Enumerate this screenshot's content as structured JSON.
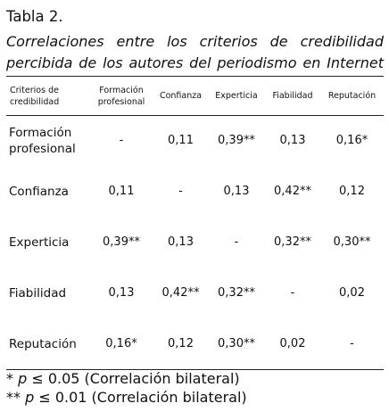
{
  "table_label": "Tabla 2.",
  "caption": {
    "line1": "Correlaciones entre los criterios de credibilidad",
    "line2": "percibida de los autores del periodismo en Internet"
  },
  "table": {
    "header": {
      "criterios_line1": "Criterios de",
      "criterios_line2": "credibilidad",
      "formacion_line1": "Formación",
      "formacion_line2": "profesional",
      "confianza": "Confianza",
      "experticia": "Experticia",
      "fiabilidad": "Fiabilidad",
      "reputacion": "Reputación"
    },
    "rows": [
      {
        "label_line1": "Formación",
        "label_line2": "profesional",
        "cells": [
          "-",
          "0,11",
          "0,39**",
          "0,13",
          "0,16*"
        ]
      },
      {
        "label_line1": "Confianza",
        "label_line2": "",
        "cells": [
          "0,11",
          "-",
          "0,13",
          "0,42**",
          "0,12"
        ]
      },
      {
        "label_line1": "Experticia",
        "label_line2": "",
        "cells": [
          "0,39**",
          "0,13",
          "-",
          "0,32**",
          "0,30**"
        ]
      },
      {
        "label_line1": "Fiabilidad",
        "label_line2": "",
        "cells": [
          "0,13",
          "0,42**",
          "0,32**",
          "-",
          "0,02"
        ]
      },
      {
        "label_line1": "Reputación",
        "label_line2": "",
        "cells": [
          "0,16*",
          "0,12",
          "0,30**",
          "0,02",
          "-"
        ]
      }
    ]
  },
  "footnotes": {
    "note1_prefix": "* ",
    "note1_symbol": "p",
    "note1_text": " ≤ 0.05 (Correlación bilateral)",
    "note2_prefix": "** ",
    "note2_symbol": "p",
    "note2_text": " ≤ 0.01 (Correlación bilateral)"
  }
}
